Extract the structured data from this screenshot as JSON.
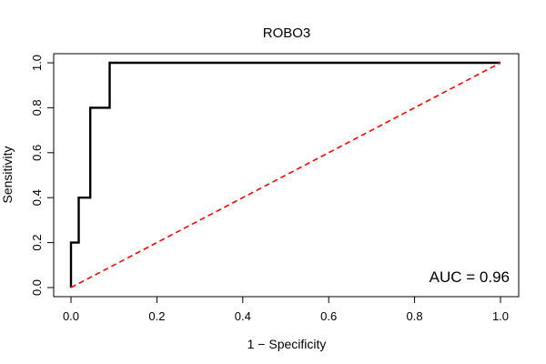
{
  "chart_data": {
    "type": "line",
    "title": "ROBO3",
    "xlabel": "1 − Specificity",
    "ylabel": "Sensitivity",
    "xlim": [
      0,
      1
    ],
    "ylim": [
      0,
      1
    ],
    "x_ticks": [
      "0.0",
      "0.2",
      "0.4",
      "0.6",
      "0.8",
      "1.0"
    ],
    "y_ticks": [
      "0.0",
      "0.2",
      "0.4",
      "0.6",
      "0.8",
      "1.0"
    ],
    "grid": false,
    "series": [
      {
        "color": "#000000",
        "style": "solid",
        "x": [
          0.0,
          0.0,
          0.018,
          0.018,
          0.045,
          0.045,
          0.09,
          0.09,
          1.0
        ],
        "y": [
          0.0,
          0.2,
          0.2,
          0.4,
          0.4,
          0.8,
          0.8,
          1.0,
          1.0
        ]
      },
      {
        "color": "#ff0000",
        "style": "dashed",
        "x": [
          0,
          1
        ],
        "y": [
          0,
          1
        ]
      }
    ],
    "annotation": "AUC = 0.96"
  }
}
